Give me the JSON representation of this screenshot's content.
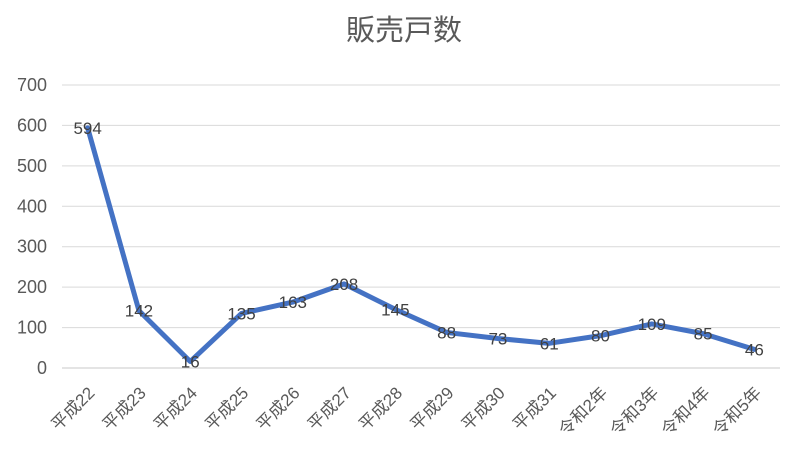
{
  "chart_data": {
    "type": "line",
    "title": "販売戸数",
    "categories": [
      "平成22",
      "平成23",
      "平成24",
      "平成25",
      "平成26",
      "平成27",
      "平成28",
      "平成29",
      "平成30",
      "平成31",
      "令和2年",
      "令和3年",
      "令和4年",
      "令和5年"
    ],
    "values": [
      594,
      142,
      16,
      135,
      163,
      208,
      145,
      88,
      73,
      61,
      80,
      109,
      85,
      46
    ],
    "xlabel": "",
    "ylabel": "",
    "ylim": [
      0,
      700
    ],
    "ytick_step": 100,
    "grid": true,
    "legend": "none",
    "data_labels": true,
    "line_color": "#4472C4",
    "label_color": "#404040",
    "axis_text_color": "#595959",
    "gridline_color": "#D9D9D9",
    "axis_line_color": "#C9C9C9",
    "background_color": "#FFFFFF",
    "title_color": "#595959"
  }
}
